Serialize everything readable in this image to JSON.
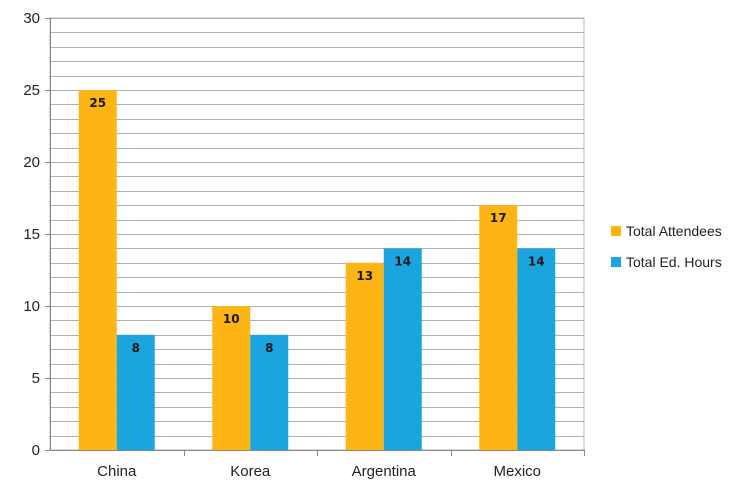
{
  "chart_data": {
    "type": "bar",
    "title": "",
    "xlabel": "",
    "ylabel": "",
    "categories": [
      "China",
      "Korea",
      "Argentina",
      "Mexico"
    ],
    "series": [
      {
        "name": "Total Attendees",
        "values": [
          25,
          10,
          13,
          17
        ],
        "color": "#FDB515"
      },
      {
        "name": "Total Ed. Hours",
        "values": [
          8,
          8,
          14,
          14
        ],
        "color": "#1BA4DE"
      }
    ],
    "ylim": [
      0,
      30
    ],
    "yticks": [
      0,
      5,
      10,
      15,
      20,
      25,
      30
    ],
    "minor_gridlines_per_major": 5,
    "grid": true,
    "legend_position": "right",
    "data_labels": true
  }
}
